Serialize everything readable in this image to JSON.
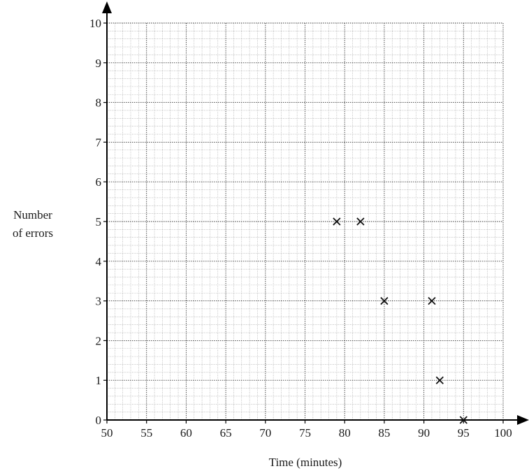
{
  "chart_data": {
    "type": "scatter",
    "title": "",
    "xlabel": "Time (minutes)",
    "ylabel_lines": [
      "Number",
      "of errors"
    ],
    "xlim": [
      50,
      100
    ],
    "ylim": [
      0,
      10
    ],
    "x_ticks": [
      "50",
      "55",
      "60",
      "65",
      "70",
      "75",
      "80",
      "85",
      "90",
      "95",
      "100"
    ],
    "y_ticks": [
      "0",
      "1",
      "2",
      "3",
      "4",
      "5",
      "6",
      "7",
      "8",
      "9",
      "10"
    ],
    "grid": "on",
    "marker": "cross",
    "series": [
      {
        "points": [
          {
            "x": 79,
            "y": 5
          },
          {
            "x": 82,
            "y": 5
          },
          {
            "x": 85,
            "y": 3
          },
          {
            "x": 91,
            "y": 3
          },
          {
            "x": 92,
            "y": 1
          },
          {
            "x": 95,
            "y": 0
          }
        ]
      }
    ]
  }
}
